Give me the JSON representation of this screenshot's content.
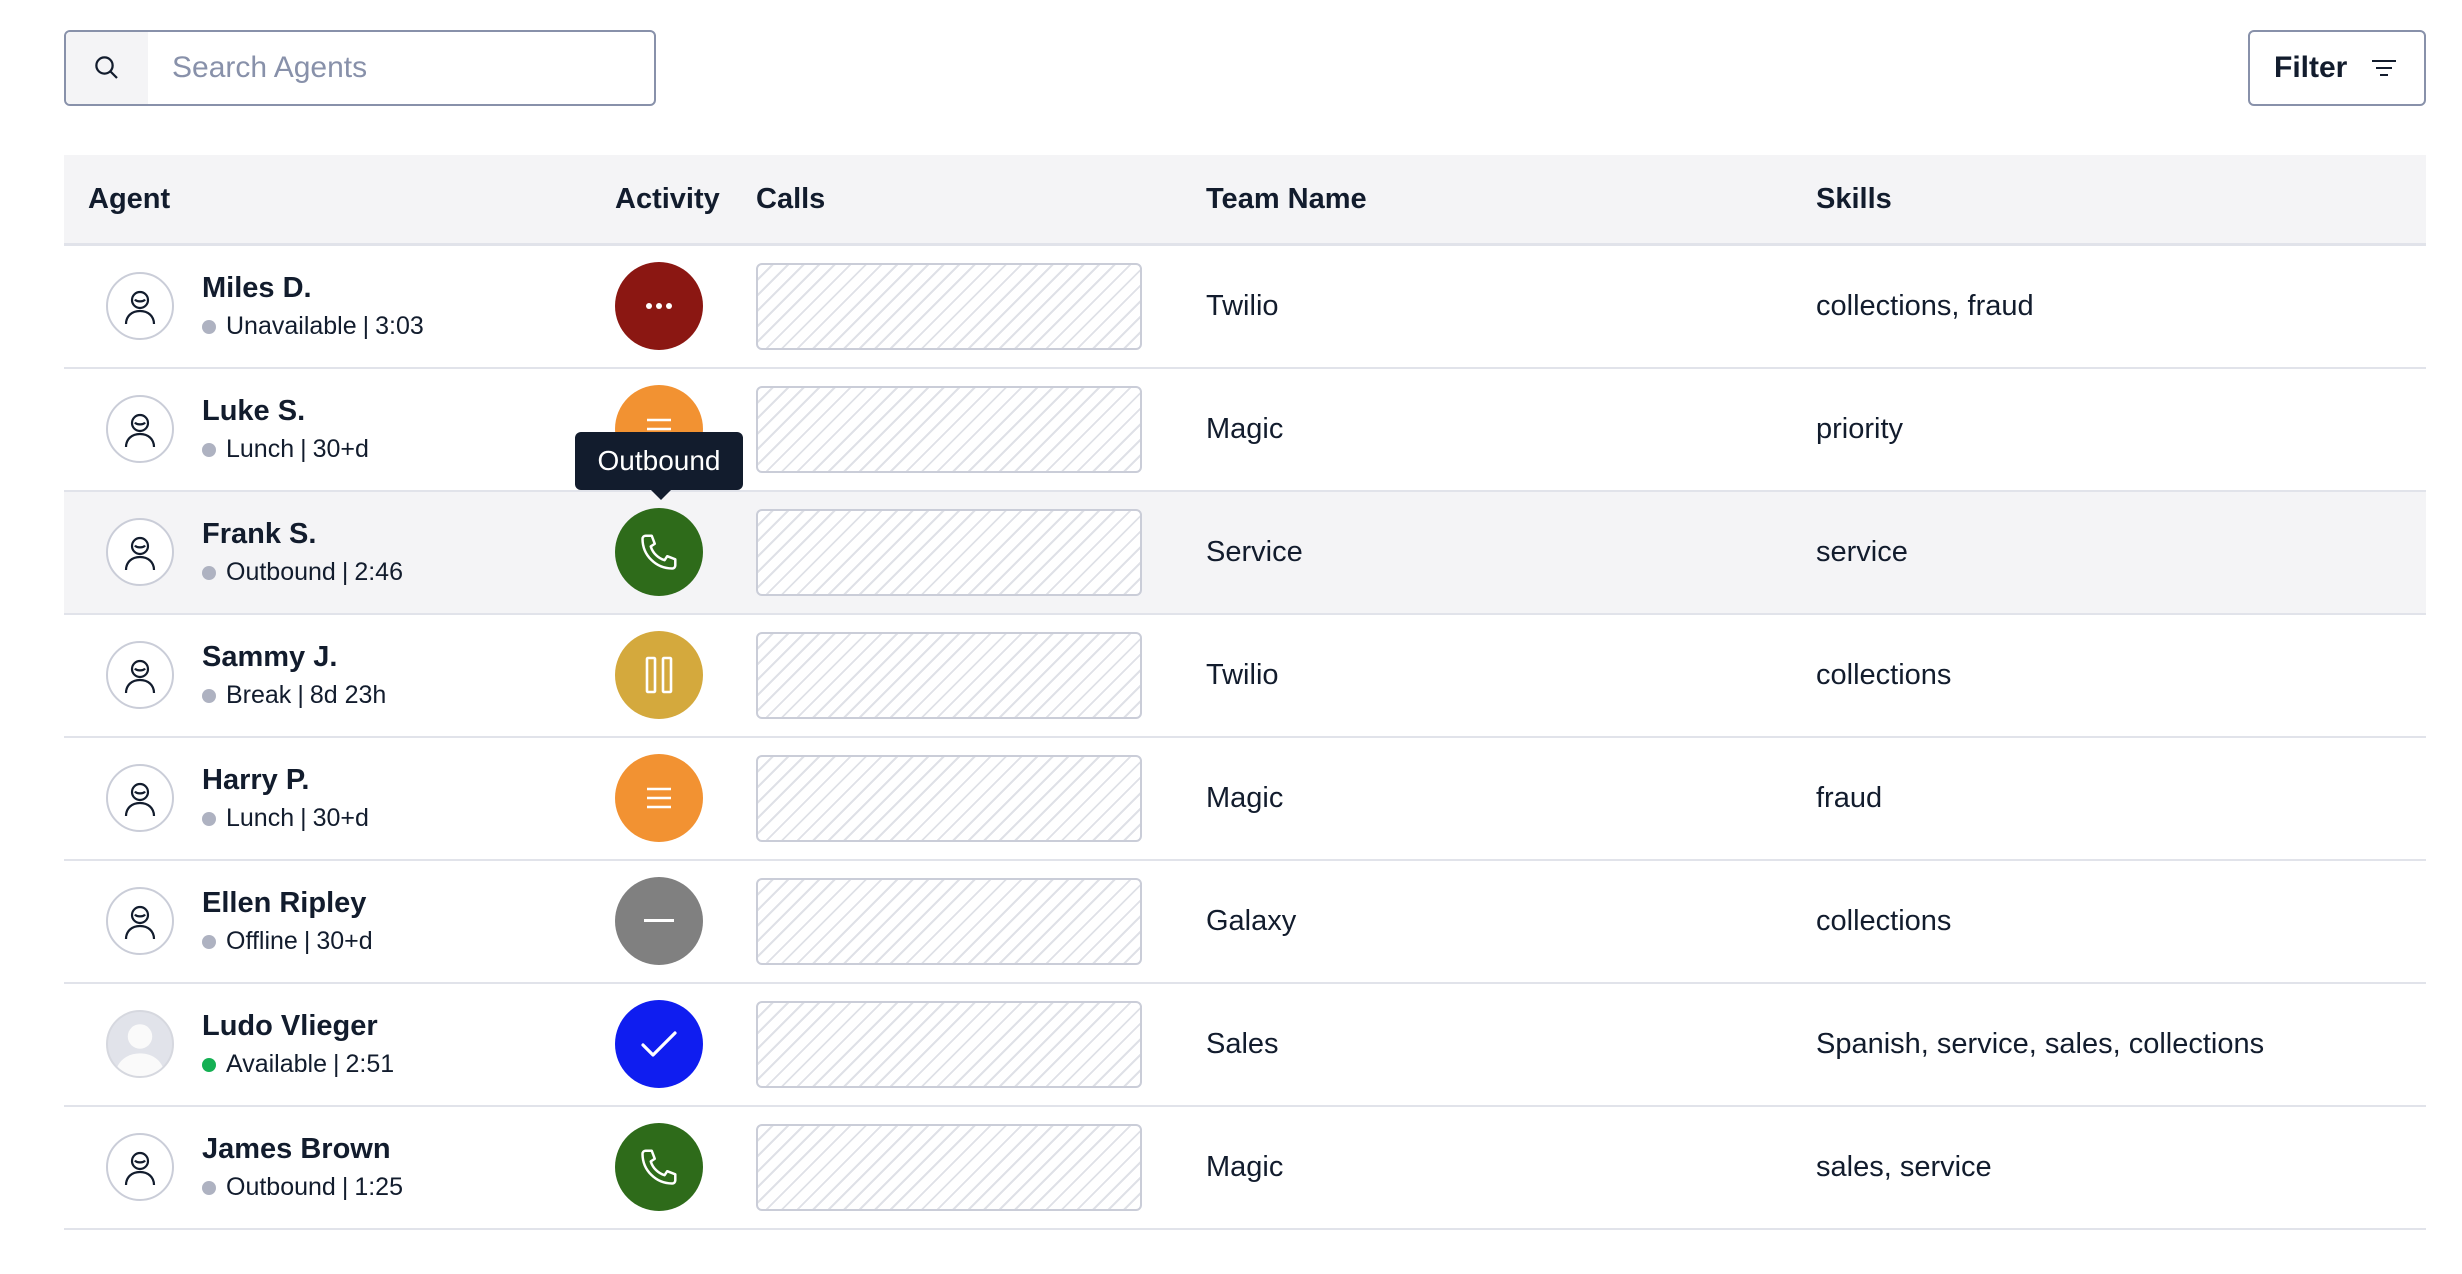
{
  "search": {
    "placeholder": "Search Agents",
    "icon": "search-icon"
  },
  "filter": {
    "label": "Filter",
    "icon": "filter-icon"
  },
  "table": {
    "headers": {
      "agent": "Agent",
      "activity": "Activity",
      "calls": "Calls",
      "team": "Team Name",
      "skills": "Skills"
    },
    "rows": [
      {
        "name": "Miles D.",
        "status": "Unavailable",
        "duration": "3:03",
        "activity": "unavailable",
        "activity_color": "#8b1712",
        "team": "Twilio",
        "skills": "collections, fraud",
        "status_dot": "#aeb2c1"
      },
      {
        "name": "Luke S.",
        "status": "Lunch",
        "duration": "30+d",
        "activity": "lunch",
        "activity_color": "#f29232",
        "team": "Magic",
        "skills": "priority",
        "status_dot": "#aeb2c1"
      },
      {
        "name": "Frank S.",
        "status": "Outbound",
        "duration": "2:46",
        "activity": "outbound",
        "activity_color": "#2e6b1a",
        "team": "Service",
        "skills": "service",
        "status_dot": "#aeb2c1"
      },
      {
        "name": "Sammy J.",
        "status": "Break",
        "duration": "8d 23h",
        "activity": "break",
        "activity_color": "#d4a93d",
        "team": "Twilio",
        "skills": "collections",
        "status_dot": "#aeb2c1"
      },
      {
        "name": "Harry P.",
        "status": "Lunch",
        "duration": "30+d",
        "activity": "lunch",
        "activity_color": "#f29232",
        "team": "Magic",
        "skills": "fraud",
        "status_dot": "#aeb2c1"
      },
      {
        "name": "Ellen Ripley",
        "status": "Offline",
        "duration": "30+d",
        "activity": "offline",
        "activity_color": "#808080",
        "team": "Galaxy",
        "skills": "collections",
        "status_dot": "#aeb2c1"
      },
      {
        "name": "Ludo Vlieger",
        "status": "Available",
        "duration": "2:51",
        "activity": "available",
        "activity_color": "#0f1df0",
        "team": "Sales",
        "skills": "Spanish, service, sales, collections",
        "status_dot": "#14b053"
      },
      {
        "name": "James Brown",
        "status": "Outbound",
        "duration": "1:25",
        "activity": "outbound",
        "activity_color": "#2e6b1a",
        "team": "Magic",
        "skills": "sales, service",
        "status_dot": "#aeb2c1"
      }
    ]
  },
  "tooltip": {
    "text": "Outbound"
  }
}
